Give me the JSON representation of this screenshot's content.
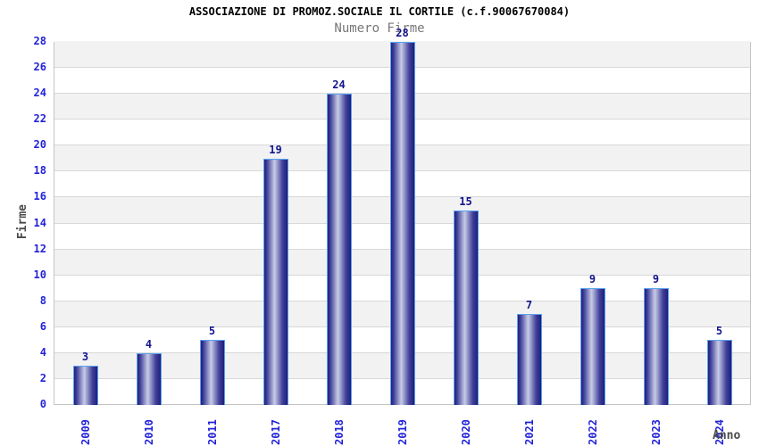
{
  "chart_data": {
    "type": "bar",
    "title": "ASSOCIAZIONE DI PROMOZ.SOCIALE IL CORTILE (c.f.90067670084)",
    "subtitle": "Numero Firme",
    "xlabel": "Anno",
    "ylabel": "Firme",
    "categories": [
      "2009",
      "2010",
      "2011",
      "2017",
      "2018",
      "2019",
      "2020",
      "2021",
      "2022",
      "2023",
      "2024"
    ],
    "values": [
      3,
      4,
      5,
      19,
      24,
      28,
      15,
      7,
      9,
      9,
      5
    ],
    "ylim": [
      0,
      28
    ],
    "ytick_step": 2,
    "grid": "horizontal gridlines every 2 units with alternating shaded bands",
    "legend": "none",
    "colors": {
      "bar_edge_dark": "#1e1e7a",
      "bar_mid_dark": "#42429b",
      "bar_highlight": "#c8cce6",
      "bar_border": "#58a2ef",
      "value_label": "#14148c",
      "tick_label": "#2323d9",
      "band_shaded": "#f2f2f2",
      "band_plain": "#ffffff",
      "grid_line": "#d8d8d8",
      "plot_border": "#c4c4c4",
      "axis_title": "#4a4a4a",
      "title_color": "#000000",
      "subtitle_color": "#777777"
    }
  }
}
